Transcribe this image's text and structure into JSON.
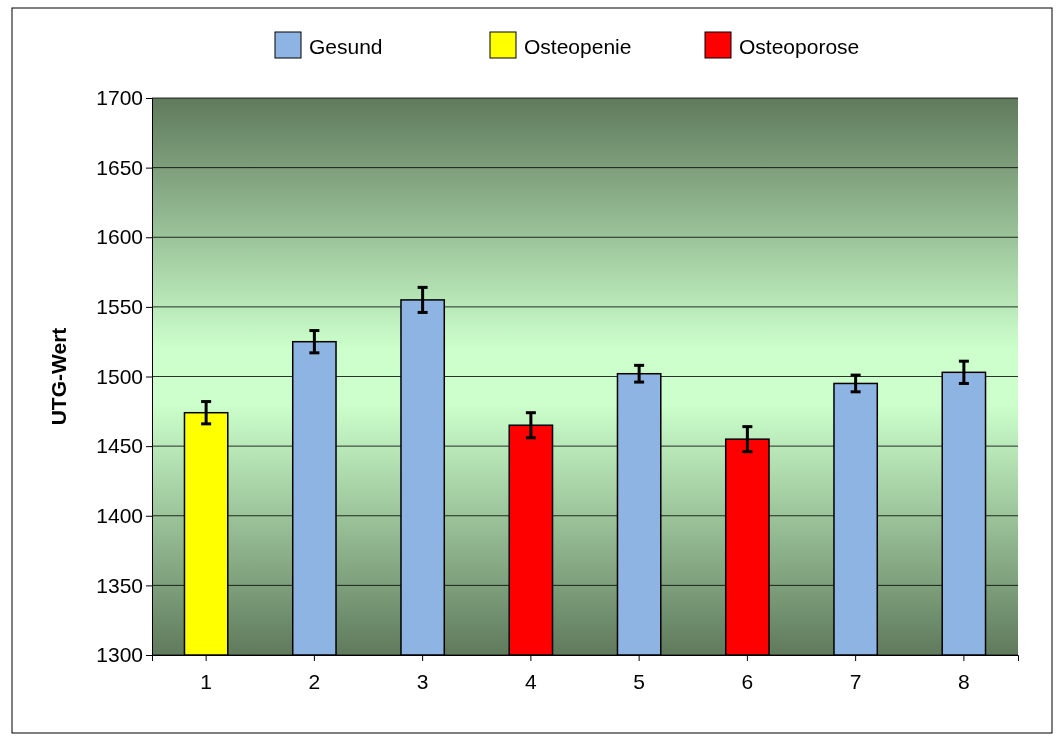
{
  "chart_data": {
    "type": "bar",
    "ylabel": "UTG-Wert",
    "categories": [
      "1",
      "2",
      "3",
      "4",
      "5",
      "6",
      "7",
      "8"
    ],
    "series": [
      {
        "name": "Gesund",
        "color": "#8eb4e3",
        "values": [
          null,
          1525,
          1555,
          null,
          1502,
          null,
          1495,
          1503
        ],
        "errors": [
          null,
          8,
          9,
          null,
          6,
          null,
          6,
          8
        ]
      },
      {
        "name": "Osteopenie",
        "color": "#ffff00",
        "values": [
          1474,
          null,
          null,
          null,
          null,
          null,
          null,
          null
        ],
        "errors": [
          8,
          null,
          null,
          null,
          null,
          null,
          null,
          null
        ]
      },
      {
        "name": "Osteoporose",
        "color": "#ff0000",
        "values": [
          null,
          null,
          null,
          1465,
          null,
          1455,
          null,
          null
        ],
        "errors": [
          null,
          null,
          null,
          9,
          null,
          9,
          null,
          null
        ]
      }
    ],
    "ylim": [
      1300,
      1700
    ],
    "yticks": [
      1300,
      1350,
      1400,
      1450,
      1500,
      1550,
      1600,
      1650,
      1700
    ],
    "grid": "y",
    "legend": "top"
  }
}
